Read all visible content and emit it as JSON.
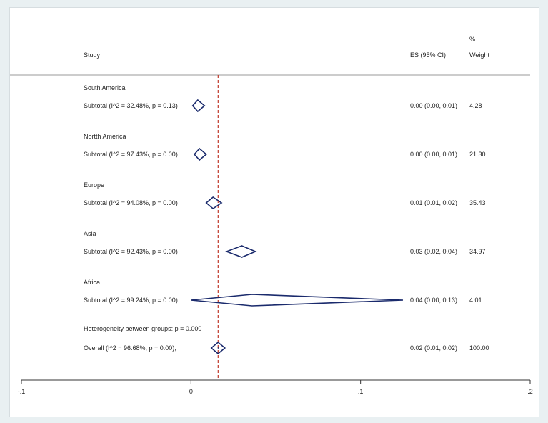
{
  "chart_data": {
    "type": "forest",
    "headers": {
      "study": "Study",
      "es": "ES (95% CI)",
      "weight_top": "%",
      "weight": "Weight"
    },
    "xaxis": {
      "min": -0.1,
      "max": 0.2,
      "ticks": [
        -0.1,
        0,
        0.1,
        0.2
      ],
      "tick_labels": [
        "-.1",
        "0",
        ".1",
        ".2"
      ]
    },
    "null_line": 0,
    "overall_line": 0.016,
    "groups": [
      {
        "name": "South America",
        "label": "Subtotal  (I^2 = 32.48%, p = 0.13)",
        "es": 0.004,
        "lo": 0.001,
        "hi": 0.008,
        "ci_text": "0.00 (0.00, 0.01)",
        "weight": "4.28"
      },
      {
        "name": "Nortth America",
        "label": "Subtotal  (I^2 = 97.43%, p = 0.00)",
        "es": 0.005,
        "lo": 0.002,
        "hi": 0.009,
        "ci_text": "0.00 (0.00, 0.01)",
        "weight": "21.30"
      },
      {
        "name": "Europe",
        "label": "Subtotal  (I^2 = 94.08%, p = 0.00)",
        "es": 0.013,
        "lo": 0.009,
        "hi": 0.018,
        "ci_text": "0.01 (0.01, 0.02)",
        "weight": "35.43"
      },
      {
        "name": "Asia",
        "label": "Subtotal  (I^2 = 92.43%, p = 0.00)",
        "es": 0.03,
        "lo": 0.021,
        "hi": 0.038,
        "ci_text": "0.03 (0.02, 0.04)",
        "weight": "34.97"
      },
      {
        "name": "Africa",
        "label": "Subtotal  (I^2 = 99.24%, p = 0.00)",
        "es": 0.036,
        "lo": 0.0,
        "hi": 0.125,
        "ci_text": "0.04 (0.00, 0.13)",
        "weight": "4.01"
      }
    ],
    "heterogeneity": "Heterogeneity between groups: p = 0.000",
    "overall": {
      "label": "Overall  (I^2 = 96.68%, p = 0.00);",
      "es": 0.016,
      "lo": 0.012,
      "hi": 0.02,
      "ci_text": "0.02 (0.01, 0.02)",
      "weight": "100.00"
    },
    "colors": {
      "diamond": "#1a2a6c",
      "overall_line": "#c0392b",
      "axis": "#333333"
    }
  }
}
